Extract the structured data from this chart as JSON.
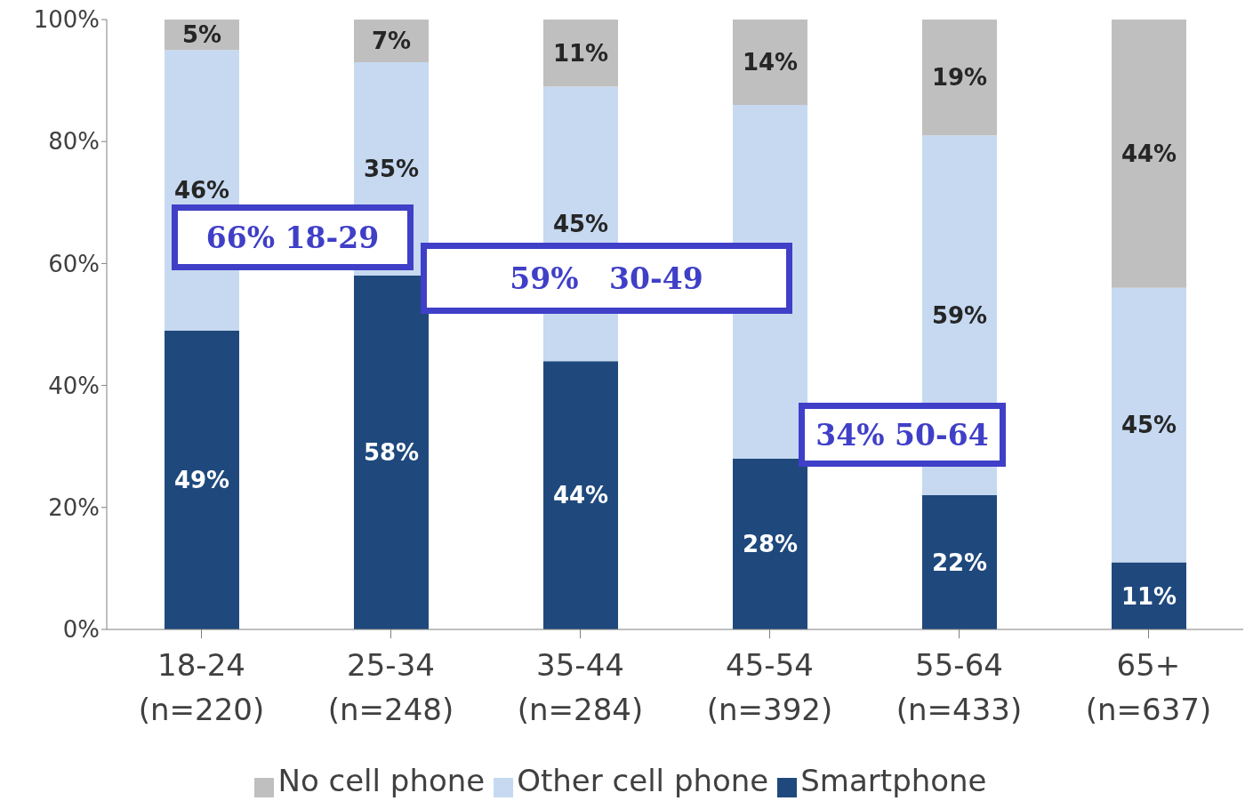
{
  "chart_data": {
    "type": "bar",
    "stacked": true,
    "categories": [
      "18-24 (n=220)",
      "25-34 (n=248)",
      "35-44 (n=284)",
      "45-54 (n=392)",
      "55-64 (n=433)",
      "65+ (n=637)"
    ],
    "series": [
      {
        "name": "Smartphone",
        "color": "#1f497d",
        "values": [
          49,
          58,
          44,
          28,
          22,
          11
        ],
        "value_labels": [
          "49%",
          "58%",
          "44%",
          "28%",
          "22%",
          "11%"
        ]
      },
      {
        "name": "Other cell phone",
        "color": "#c6d9f1",
        "values": [
          46,
          35,
          45,
          58,
          59,
          45
        ],
        "value_labels": [
          "46%",
          "35%",
          "45%",
          null,
          "59%",
          "45%"
        ]
      },
      {
        "name": "No cell phone",
        "color": "#bfbfbf",
        "values": [
          5,
          7,
          11,
          14,
          19,
          44
        ],
        "value_labels": [
          "5%",
          "7%",
          "11%",
          "14%",
          "19%",
          "44%"
        ]
      }
    ],
    "ylim": [
      0,
      100
    ],
    "yticks": [
      {
        "value": 0,
        "label": "0%"
      },
      {
        "value": 20,
        "label": "20%"
      },
      {
        "value": 40,
        "label": "40%"
      },
      {
        "value": 60,
        "label": "60%"
      },
      {
        "value": 80,
        "label": "80%"
      },
      {
        "value": 100,
        "label": "100%"
      }
    ],
    "grid": false,
    "legend": "bottom",
    "annotations": [
      "66% 18-29",
      "59%   30-49",
      "34% 50-64"
    ]
  }
}
